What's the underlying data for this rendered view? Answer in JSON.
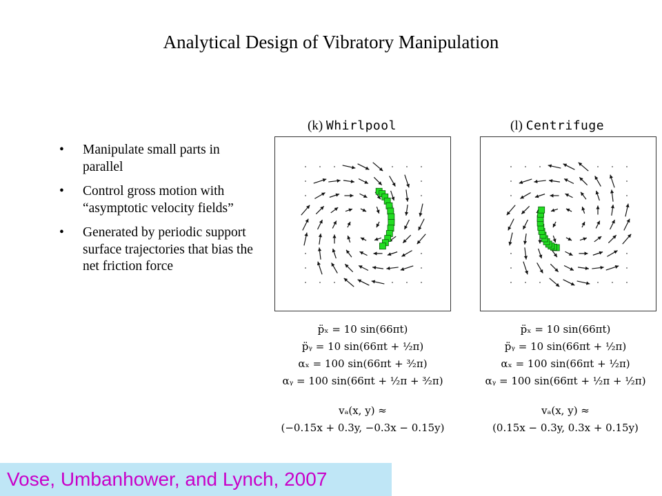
{
  "slide": {
    "title": "Analytical Design of Vibratory Manipulation",
    "bullets": [
      "Manipulate small parts in parallel",
      "Control gross motion with “asymptotic velocity fields”",
      "Generated by periodic support surface trajectories that bias the net friction force"
    ],
    "bullet_symbol": "•",
    "citation": "Vose, Umbanhower, and Lynch, 2007",
    "colors": {
      "citation_text": "#c800c8",
      "citation_background": "#bfe6f6",
      "part_fill": "#22dd22"
    }
  },
  "panels": [
    {
      "label": "(k)",
      "name": "Whirlpool",
      "equations": [
        "p̈ₓ = 10 sin(66πt)",
        "p̈ᵧ = 10 sin(66πt + ½π)",
        "αₓ = 100 sin(66πt + ³⁄₂π)",
        "αᵧ = 100 sin(66πt + ½π + ³⁄₂π)"
      ],
      "field_label": "vₐ(x, y) ≈",
      "field": "(−0.15x + 0.3y, −0.3x − 0.15y)"
    },
    {
      "label": "(l)",
      "name": "Centrifuge",
      "equations": [
        "p̈ₓ = 10 sin(66πt)",
        "p̈ᵧ = 10 sin(66πt + ½π)",
        "αₓ = 100 sin(66πt + ½π)",
        "αᵧ = 100 sin(66πt + ½π + ½π)"
      ],
      "field_label": "vₐ(x, y) ≈",
      "field": "(0.15x − 0.3y, 0.3x + 0.15y)"
    }
  ]
}
